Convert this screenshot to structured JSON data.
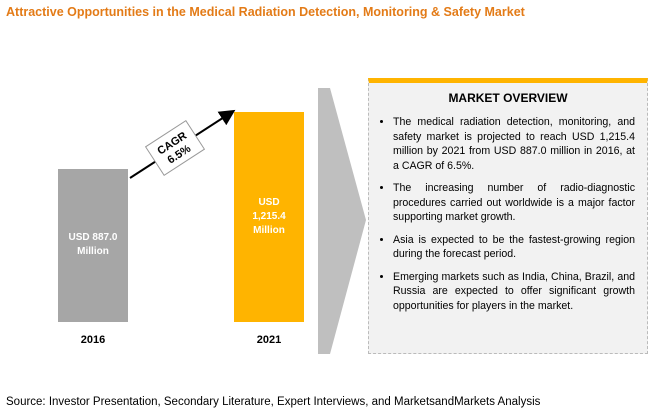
{
  "title": "Attractive Opportunities in the Medical Radiation Detection, Monitoring & Safety Market",
  "chart_data": {
    "type": "bar",
    "categories": [
      "2016",
      "2021"
    ],
    "values": [
      887.0,
      1215.4
    ],
    "value_labels": [
      "USD 887.0 Million",
      "USD 1,215.4 Million"
    ],
    "colors": [
      "#a6a6a6",
      "#ffb400"
    ],
    "annotations": [
      "CAGR",
      "6.5%"
    ]
  },
  "overview": {
    "title": "MARKET OVERVIEW",
    "bullets": [
      "The medical radiation detection, monitoring, and safety market is projected to reach USD 1,215.4 million by 2021 from USD 887.0 million in 2016, at a CAGR of 6.5%.",
      "The increasing number of radio-diagnostic procedures carried out worldwide is a major factor supporting market growth.",
      "Asia is expected to be the fastest-growing region during the forecast period.",
      "Emerging markets such as India, China, Brazil, and Russia are expected to offer significant growth opportunities for players in the market."
    ]
  },
  "source": "Source: Investor Presentation, Secondary Literature, Expert Interviews, and MarketsandMarkets Analysis"
}
